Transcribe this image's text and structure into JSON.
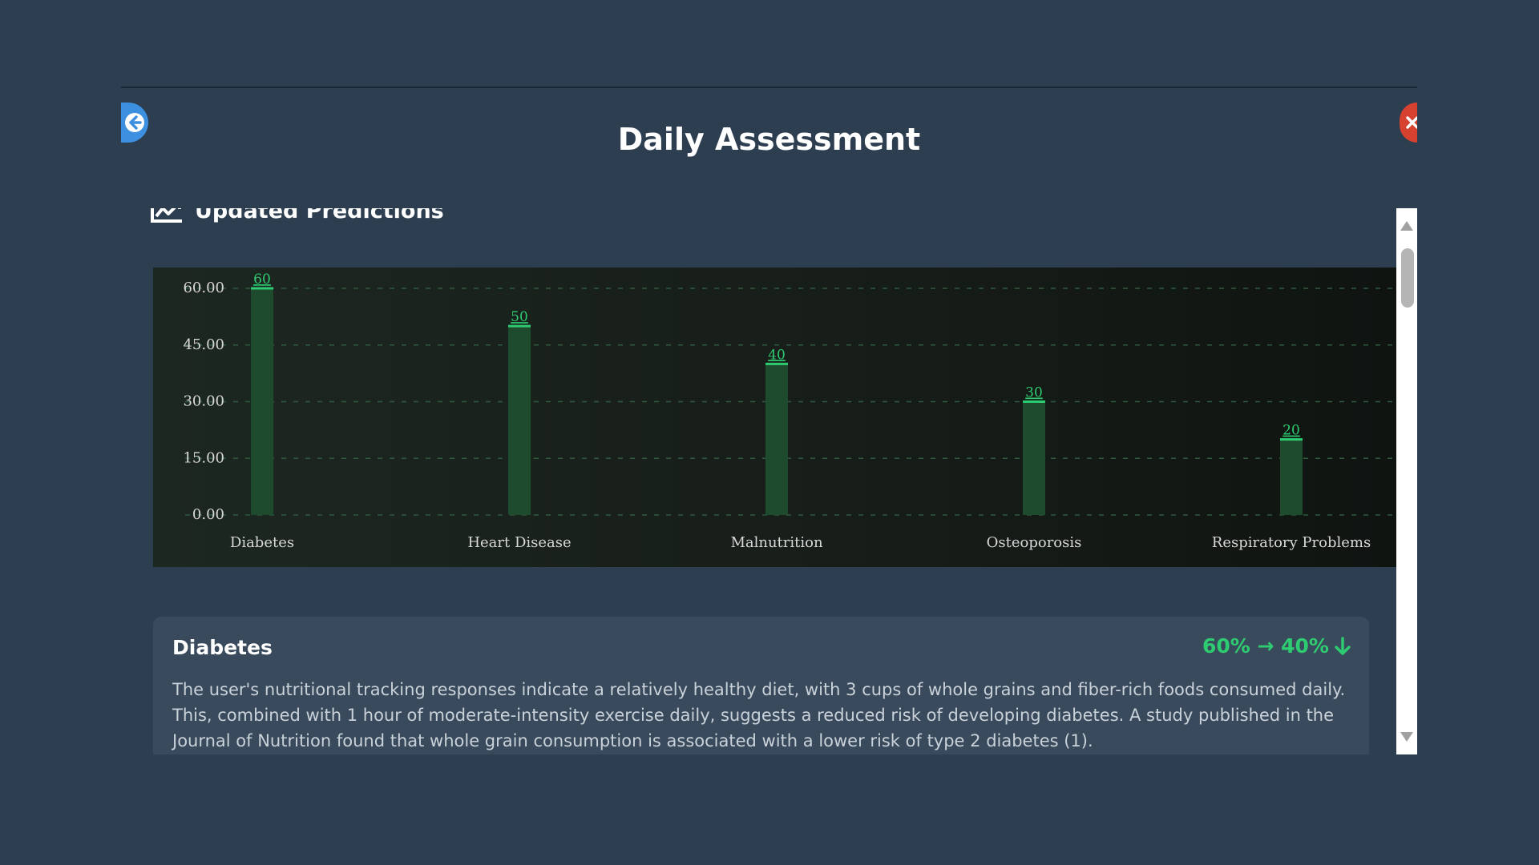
{
  "header": {
    "title": "Daily Assessment"
  },
  "icons": {
    "back": "arrow-left-icon",
    "close": "close-icon",
    "section": "chart-line-icon",
    "trend": "arrow-down-icon"
  },
  "colors": {
    "background": "#2c3e50",
    "accent_back": "#3d8fe0",
    "accent_close": "#d7412f",
    "bar_fill": "#1e4a2e",
    "bar_top": "#2ecc71",
    "trend_green": "#2ecc71"
  },
  "section": {
    "title": "Updated Predictions"
  },
  "chart_data": {
    "type": "bar",
    "categories": [
      "Diabetes",
      "Heart Disease",
      "Malnutrition",
      "Osteoporosis",
      "Respiratory Problems"
    ],
    "values": [
      60,
      50,
      40,
      30,
      20
    ],
    "value_labels": [
      "60",
      "50",
      "40",
      "30",
      "20"
    ],
    "yticks": [
      "0.00",
      "15.00",
      "30.00",
      "45.00",
      "60.00"
    ],
    "ylim": [
      0,
      60
    ],
    "grid": true,
    "title": "",
    "xlabel": "",
    "ylabel": ""
  },
  "card": {
    "title": "Diabetes",
    "change": "60% → 40%",
    "text": "The user's nutritional tracking responses indicate a relatively healthy diet, with 3 cups of whole grains and fiber-rich foods consumed daily. This, combined with 1 hour of moderate-intensity exercise daily, suggests a reduced risk of developing diabetes. A study published in the Journal of Nutrition found that whole grain consumption is associated with a lower risk of type 2 diabetes (1)."
  }
}
